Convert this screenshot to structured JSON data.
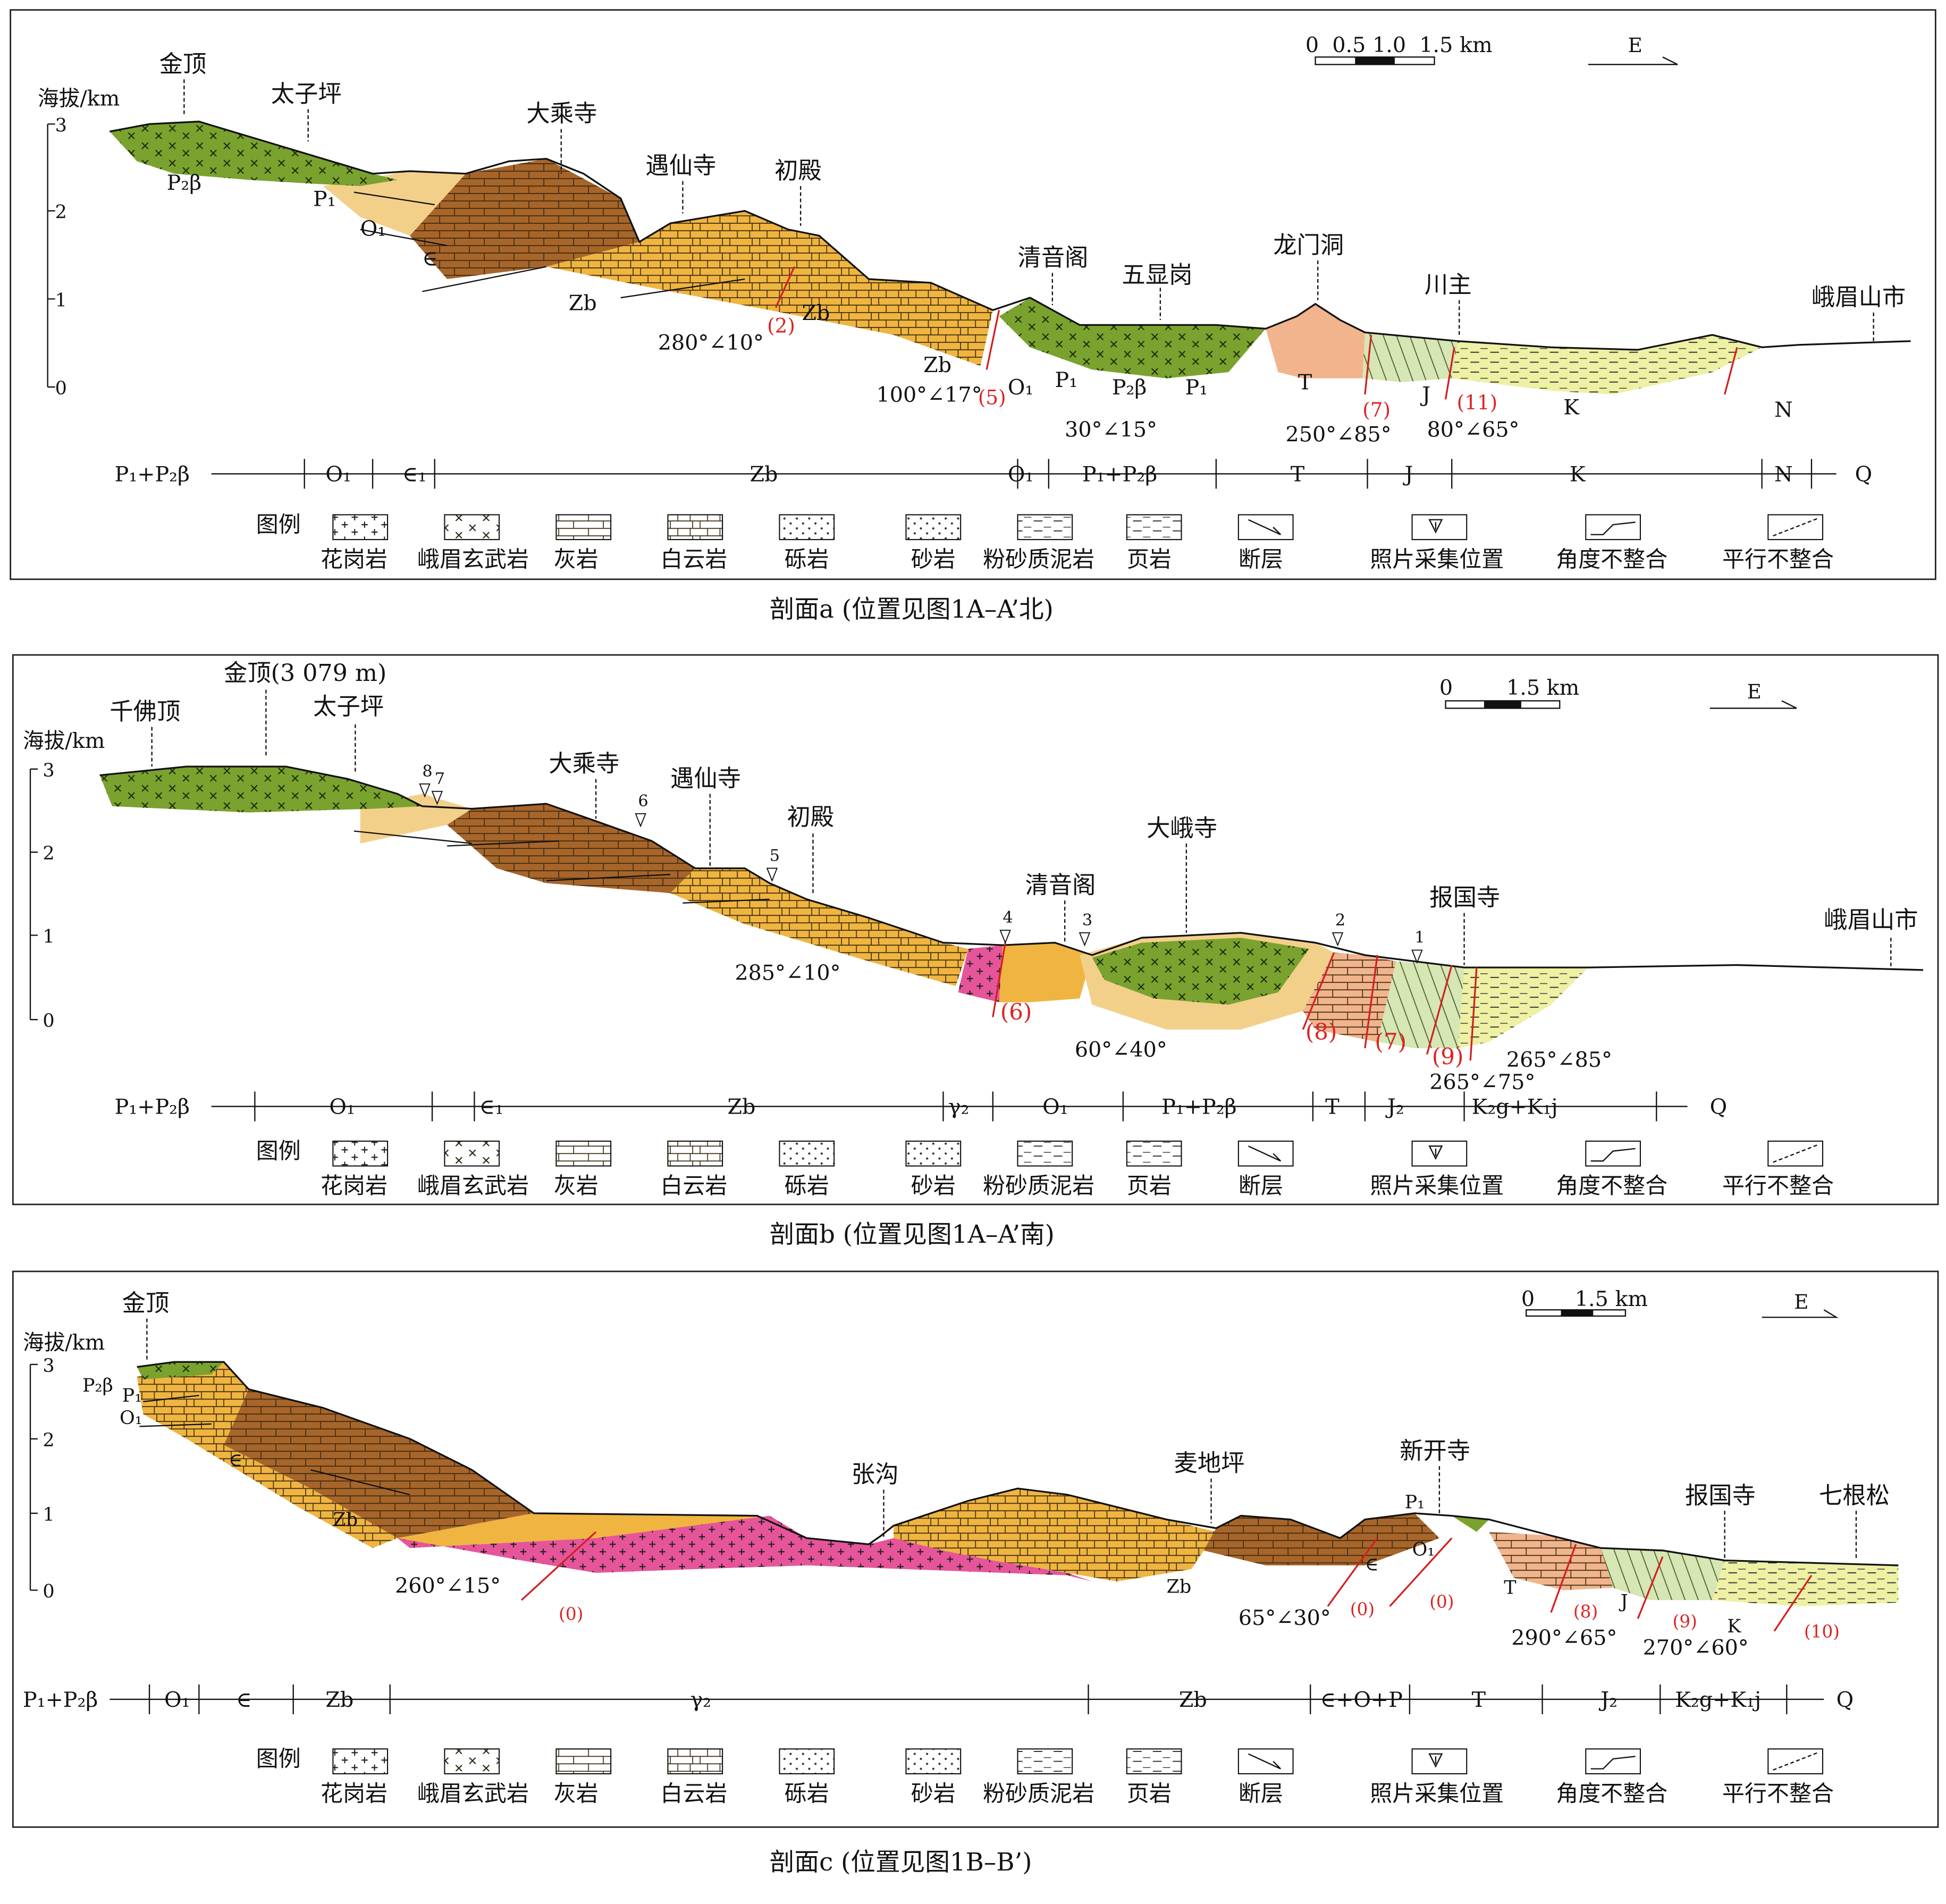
{
  "colors": {
    "basalt": "#7aa22e",
    "limestone_light": "#f3d08a",
    "dolomite": "#f0b540",
    "limestone_dark": "#a8652a",
    "granite": "#e6559a",
    "triassic": "#f2b48c",
    "jurassic": "#d6e6b4",
    "cretaceous": "#eef0a4",
    "fault": "#d22020"
  },
  "common": {
    "axis_label": "海拔/km",
    "axis_ticks": [
      "3",
      "2",
      "1",
      "0"
    ],
    "legend_title": "图例",
    "legend": [
      {
        "label": "花岗岩",
        "icon": "granite-pattern-icon"
      },
      {
        "label": "峨眉玄武岩",
        "icon": "basalt-pattern-icon"
      },
      {
        "label": "灰岩",
        "icon": "limestone-pattern-icon"
      },
      {
        "label": "白云岩",
        "icon": "dolomite-pattern-icon"
      },
      {
        "label": "砾岩",
        "icon": "conglomerate-pattern-icon"
      },
      {
        "label": "砂岩",
        "icon": "sandstone-pattern-icon"
      },
      {
        "label": "粉砂质泥岩",
        "icon": "siltstone-pattern-icon"
      },
      {
        "label": "页岩",
        "icon": "shale-pattern-icon"
      },
      {
        "label": "断层",
        "icon": "fault-icon"
      },
      {
        "label": "照片采集位置",
        "icon": "photo-location-icon"
      },
      {
        "label": "角度不整合",
        "icon": "angular-unconformity-icon"
      },
      {
        "label": "平行不整合",
        "icon": "parallel-unconformity-icon"
      }
    ]
  },
  "panels": [
    {
      "caption": "剖面a (位置见图1A–A’北)",
      "scale_label": "0  0.5 1.0  1.5 km",
      "direction": "E",
      "places": [
        "金顶",
        "太子坪",
        "大乘寺",
        "遇仙寺",
        "初殿",
        "清音阁",
        "五显岗",
        "龙门洞",
        "川主",
        "峨眉山市"
      ],
      "units": [
        "P₂β",
        "P₁",
        "O₁",
        "∈",
        "Zb",
        "Zb",
        "Zb",
        "O₁",
        "P₁",
        "P₂β",
        "P₁",
        "T",
        "J",
        "K",
        "N"
      ],
      "attitudes": [
        "280°∠10°",
        "100°∠17°",
        "30°∠15°",
        "250°∠85°",
        "80°∠65°"
      ],
      "faults": [
        "(2)",
        "(5)",
        "(7)",
        "(11)"
      ],
      "strat_bar": [
        "P₁+P₂β",
        "O₁",
        "∈₁",
        "Zb",
        "O₁",
        "P₁+P₂β",
        "T",
        "J",
        "K",
        "N",
        "Q"
      ]
    },
    {
      "caption": "剖面b (位置见图1A–A’南)",
      "scale_label": "0        1.5 km",
      "direction": "E",
      "places": [
        "千佛顶",
        "金顶(3 079 m)",
        "太子坪",
        "大乘寺",
        "遇仙寺",
        "初殿",
        "清音阁",
        "大峨寺",
        "报国寺",
        "峨眉山市"
      ],
      "photo_points": [
        "8",
        "7",
        "6",
        "5",
        "4",
        "3",
        "2",
        "1"
      ],
      "attitudes": [
        "285°∠10°",
        "60°∠40°",
        "265°∠75°",
        "265°∠85°"
      ],
      "faults": [
        "(6)",
        "(8)",
        "(7)",
        "(9)"
      ],
      "strat_bar": [
        "P₁+P₂β",
        "O₁",
        "∈₁",
        "Zb",
        "γ₂",
        "O₁",
        "P₁+P₂β",
        "T",
        "J₂",
        "K₂g+K₁j",
        "Q"
      ]
    },
    {
      "caption": "剖面c (位置见图1B–B’)",
      "scale_label": "0      1.5 km",
      "direction": "E",
      "places": [
        "金顶",
        "张沟",
        "麦地坪",
        "新开寺",
        "报国寺",
        "七根松"
      ],
      "units": [
        "P₂β",
        "P₁",
        "O₁",
        "∈",
        "Zb",
        "Zb",
        "∈",
        "P₁",
        "O₁",
        "T",
        "J",
        "K"
      ],
      "attitudes": [
        "260°∠15°",
        "65°∠30°",
        "290°∠65°",
        "270°∠60°"
      ],
      "faults": [
        "(0)",
        "(0)",
        "(0)",
        "(8)",
        "(9)",
        "(10)"
      ],
      "strat_bar": [
        "P₁+P₂β",
        "O₁",
        "∈",
        "Zb",
        "γ₂",
        "Zb",
        "∈+O+P",
        "T",
        "J₂",
        "K₂g+K₁j",
        "Q"
      ]
    }
  ]
}
